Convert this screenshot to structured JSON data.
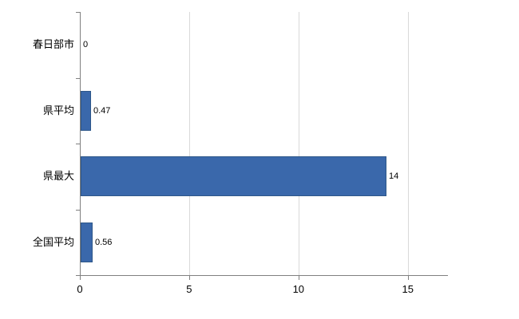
{
  "chart_data": {
    "type": "bar",
    "orientation": "horizontal",
    "title": "",
    "xlabel": "",
    "ylabel": "",
    "categories": [
      "春日部市",
      "県平均",
      "県最大",
      "全国平均"
    ],
    "values": [
      0,
      0.47,
      14,
      0.56
    ],
    "value_labels": [
      "0",
      "0.47",
      "14",
      "0.56"
    ],
    "x_ticks": [
      0,
      5,
      10,
      15
    ],
    "x_tick_labels": [
      "0",
      "5",
      "10",
      "15"
    ],
    "xlim": [
      0,
      16.8
    ],
    "grid": "vertical-gridlines",
    "legend": "none",
    "colors": {
      "bar_fill": "#3a68ab",
      "bar_border": "#2e5789",
      "axis": "#808080",
      "gridline": "#d9d9d9",
      "text": "#000000"
    }
  }
}
